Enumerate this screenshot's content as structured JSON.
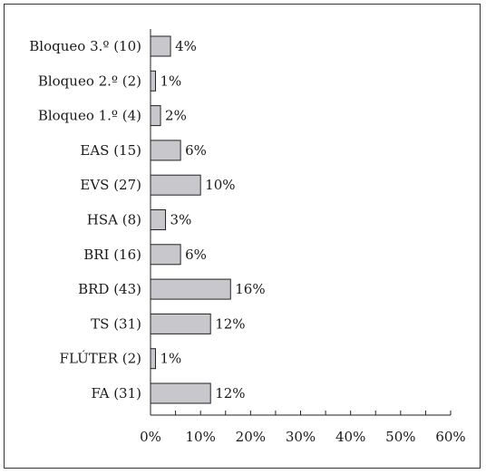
{
  "chart_data": {
    "type": "bar",
    "orientation": "horizontal",
    "categories": [
      "Bloqueo 3.º (10)",
      "Bloqueo 2.º (2)",
      "Bloqueo 1.º (4)",
      "EAS (15)",
      "EVS (27)",
      "HSA (8)",
      "BRI (16)",
      "BRD (43)",
      "TS (31)",
      "FLÚTER (2)",
      "FA (31)"
    ],
    "values": [
      4,
      1,
      2,
      6,
      10,
      3,
      6,
      16,
      12,
      1,
      12
    ],
    "value_labels": [
      "4%",
      "1%",
      "2%",
      "6%",
      "10%",
      "3%",
      "6%",
      "16%",
      "12%",
      "1%",
      "12%"
    ],
    "xlim": [
      0,
      60
    ],
    "xticks": [
      "0%",
      "10%",
      "20%",
      "30%",
      "40%",
      "50%",
      "60%"
    ],
    "title": "",
    "xlabel": "",
    "ylabel": "",
    "grid": false,
    "colors": {
      "bar_fill": "#c8c8cc",
      "bar_stroke": "#222222",
      "axis": "#222222"
    }
  }
}
